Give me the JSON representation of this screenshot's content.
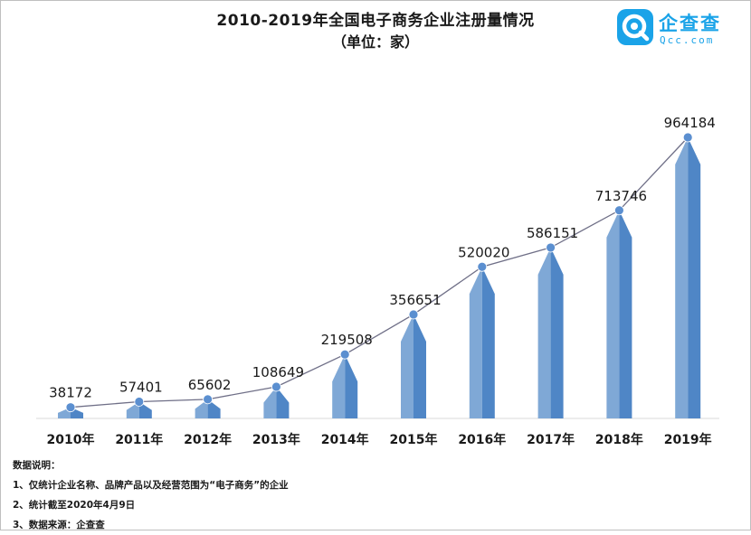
{
  "header": {
    "title": "2010-2019年全国电子商务企业注册量情况",
    "subtitle": "（单位：家）"
  },
  "logo": {
    "brand": "企查查",
    "domain": "Qcc.com",
    "icon": "qcc-logo-icon",
    "color": "#1aa3e8"
  },
  "chart_data": {
    "type": "bar",
    "title": "2010-2019年全国电子商务企业注册量情况",
    "subtitle": "（单位：家）",
    "categories": [
      "2010年",
      "2011年",
      "2012年",
      "2013年",
      "2014年",
      "2015年",
      "2016年",
      "2017年",
      "2018年",
      "2019年"
    ],
    "values": [
      38172,
      57401,
      65602,
      108649,
      219508,
      356651,
      520020,
      586151,
      713746,
      964184
    ],
    "data_labels": [
      "38172",
      "57401",
      "65602",
      "108649",
      "219508",
      "356651",
      "520020",
      "586151",
      "713746",
      "964184"
    ],
    "overlay": "line",
    "ylim": [
      0,
      1100000
    ],
    "grid": false,
    "legend": "none",
    "colors": {
      "bar_light": "#7fa8d6",
      "bar_dark": "#4f86c6",
      "line": "#6f6f87",
      "marker": "#5b8fd0"
    }
  },
  "notes": {
    "heading": "数据说明：",
    "items": [
      "1、仅统计企业名称、品牌产品以及经营范围为“电子商务”的企业",
      "2、统计截至2020年4月9日",
      "3、数据来源：企查查"
    ]
  }
}
